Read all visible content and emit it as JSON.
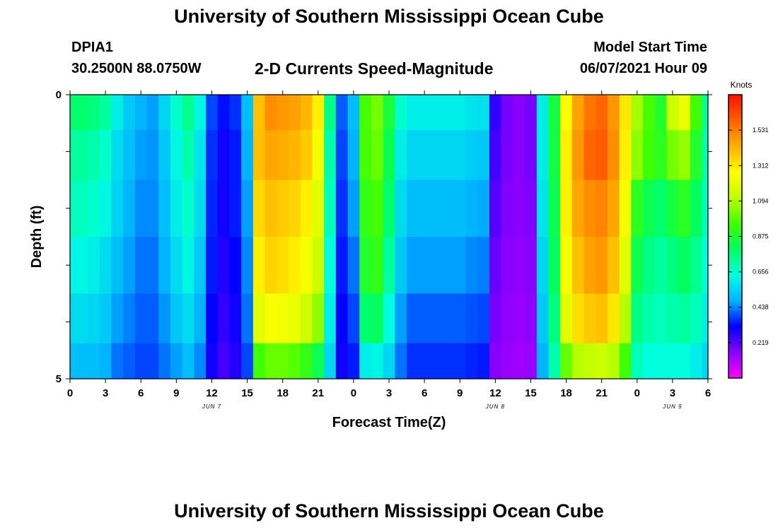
{
  "header": {
    "title": "University of Southern Mississippi Ocean Cube",
    "station": "DPIA1",
    "coords": "30.2500N  88.0750W",
    "subtitle": "2-D Currents Speed-Magnitude",
    "model_label": "Model Start Time",
    "model_time": "06/07/2021 Hour 09"
  },
  "footer": {
    "title": "University of Southern Mississippi Ocean Cube"
  },
  "chart_data": {
    "type": "heatmap",
    "title": "2-D Currents Speed-Magnitude",
    "xlabel": "Forecast Time(Z)",
    "ylabel": "Depth (ft)",
    "x_tick_labels": [
      "0",
      "3",
      "6",
      "9",
      "12",
      "15",
      "18",
      "21",
      "0",
      "3",
      "6",
      "9",
      "12",
      "15",
      "18",
      "21",
      "0",
      "3",
      "6"
    ],
    "date_labels": [
      "JUN 7",
      "JUN 8",
      "JUN 9"
    ],
    "y_tick_labels": [
      "0",
      "5"
    ],
    "ylim": [
      0,
      5
    ],
    "x_range_hours": [
      0,
      54
    ],
    "colorbar": {
      "label": "Knots",
      "ticks": [
        0.219,
        0.438,
        0.656,
        0.875,
        1.094,
        1.312,
        1.531
      ],
      "tick_labels": [
        "0.219",
        "0.438",
        "0.656",
        "0.875",
        "1.094",
        "1.312",
        "1.531"
      ],
      "range": [
        0,
        1.75
      ],
      "colors": [
        "#ff00ff",
        "#8a00ff",
        "#0000ff",
        "#00b4ff",
        "#00ffe0",
        "#00ff60",
        "#40ff00",
        "#c0ff00",
        "#ffff00",
        "#ffb000",
        "#ff6000",
        "#ff1000"
      ]
    },
    "depth_levels": [
      0.25,
      1.0,
      2.0,
      3.0,
      4.0,
      4.75
    ],
    "hours": [
      0,
      1,
      2,
      3,
      4,
      5,
      6,
      7,
      8,
      9,
      10,
      11,
      12,
      13,
      14,
      15,
      16,
      17,
      18,
      19,
      20,
      21,
      22,
      23,
      24,
      25,
      26,
      27,
      28,
      29,
      30,
      31,
      32,
      33,
      34,
      35,
      36,
      37,
      38,
      39,
      40,
      41,
      42,
      43,
      44,
      45,
      46,
      47,
      48,
      49,
      50,
      51,
      52,
      53,
      54
    ],
    "speed_knots": [
      [
        0.78,
        0.78,
        0.76,
        0.72,
        0.6,
        0.52,
        0.48,
        0.46,
        0.55,
        0.66,
        0.74,
        0.62,
        0.38,
        0.33,
        0.36,
        0.5,
        1.4,
        1.5,
        1.48,
        1.46,
        1.42,
        1.3,
        0.75,
        0.4,
        0.5,
        0.96,
        1.02,
        0.86,
        0.66,
        0.6,
        0.6,
        0.6,
        0.6,
        0.6,
        0.58,
        0.57,
        0.26,
        0.18,
        0.16,
        0.18,
        0.6,
        0.85,
        1.28,
        1.46,
        1.55,
        1.58,
        1.48,
        1.32,
        1.08,
        0.96,
        0.88,
        1.15,
        1.22,
        0.95,
        0.72
      ],
      [
        0.72,
        0.72,
        0.7,
        0.66,
        0.56,
        0.5,
        0.46,
        0.45,
        0.52,
        0.62,
        0.7,
        0.58,
        0.36,
        0.3,
        0.34,
        0.48,
        1.4,
        1.45,
        1.44,
        1.42,
        1.38,
        1.25,
        0.7,
        0.38,
        0.48,
        0.96,
        1.0,
        0.82,
        0.6,
        0.55,
        0.55,
        0.55,
        0.55,
        0.55,
        0.53,
        0.52,
        0.24,
        0.18,
        0.16,
        0.18,
        0.6,
        0.84,
        1.3,
        1.48,
        1.58,
        1.6,
        1.5,
        1.3,
        1.05,
        0.95,
        0.9,
        1.02,
        1.06,
        0.88,
        0.7
      ],
      [
        0.68,
        0.68,
        0.66,
        0.62,
        0.54,
        0.48,
        0.44,
        0.44,
        0.5,
        0.6,
        0.66,
        0.56,
        0.35,
        0.3,
        0.34,
        0.46,
        1.35,
        1.4,
        1.38,
        1.36,
        1.3,
        1.2,
        0.68,
        0.36,
        0.46,
        0.92,
        0.96,
        0.78,
        0.56,
        0.5,
        0.5,
        0.5,
        0.5,
        0.5,
        0.48,
        0.47,
        0.22,
        0.17,
        0.16,
        0.17,
        0.58,
        0.82,
        1.3,
        1.45,
        1.5,
        1.52,
        1.45,
        1.25,
        0.9,
        0.82,
        0.78,
        0.85,
        0.9,
        0.8,
        0.68
      ],
      [
        0.62,
        0.62,
        0.6,
        0.56,
        0.5,
        0.46,
        0.42,
        0.42,
        0.48,
        0.56,
        0.62,
        0.52,
        0.34,
        0.28,
        0.32,
        0.44,
        1.3,
        1.36,
        1.34,
        1.3,
        1.25,
        1.15,
        0.64,
        0.34,
        0.42,
        0.88,
        0.92,
        0.72,
        0.52,
        0.46,
        0.46,
        0.46,
        0.46,
        0.46,
        0.44,
        0.43,
        0.2,
        0.16,
        0.15,
        0.16,
        0.55,
        0.8,
        1.26,
        1.4,
        1.46,
        1.48,
        1.4,
        1.2,
        0.82,
        0.75,
        0.72,
        0.76,
        0.8,
        0.74,
        0.64
      ],
      [
        0.56,
        0.56,
        0.55,
        0.52,
        0.46,
        0.43,
        0.4,
        0.4,
        0.45,
        0.52,
        0.56,
        0.48,
        0.32,
        0.26,
        0.3,
        0.42,
        1.2,
        1.26,
        1.24,
        1.22,
        1.15,
        1.05,
        0.6,
        0.32,
        0.38,
        0.78,
        0.8,
        0.64,
        0.46,
        0.4,
        0.4,
        0.4,
        0.4,
        0.4,
        0.39,
        0.38,
        0.18,
        0.15,
        0.14,
        0.15,
        0.52,
        0.76,
        1.2,
        1.34,
        1.38,
        1.4,
        1.32,
        1.1,
        0.75,
        0.7,
        0.68,
        0.7,
        0.72,
        0.68,
        0.6
      ],
      [
        0.5,
        0.5,
        0.5,
        0.48,
        0.42,
        0.4,
        0.38,
        0.38,
        0.42,
        0.46,
        0.5,
        0.44,
        0.3,
        0.24,
        0.28,
        0.38,
        0.95,
        1.0,
        1.0,
        0.98,
        0.92,
        0.82,
        0.55,
        0.3,
        0.34,
        0.6,
        0.62,
        0.55,
        0.42,
        0.36,
        0.36,
        0.36,
        0.36,
        0.36,
        0.35,
        0.34,
        0.16,
        0.14,
        0.13,
        0.14,
        0.48,
        0.7,
        1.0,
        1.1,
        1.12,
        1.15,
        1.1,
        0.95,
        0.68,
        0.64,
        0.64,
        0.64,
        0.64,
        0.6,
        0.55
      ]
    ]
  }
}
